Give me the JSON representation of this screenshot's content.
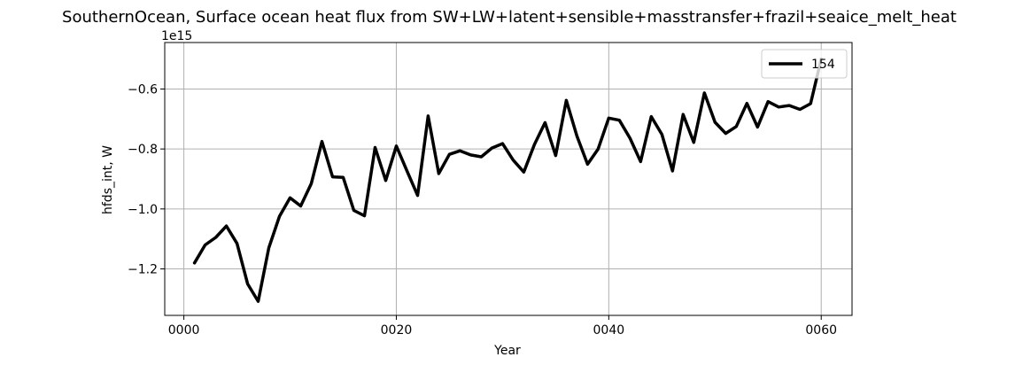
{
  "chart_data": {
    "type": "line",
    "title": "SouthernOcean, Surface ocean heat flux from SW+LW+latent+sensible+masstransfer+frazil+seaice_melt_heat",
    "xlabel": "Year",
    "ylabel": "hfds_int, W",
    "y_offset_label": "1e15",
    "xlim": [
      -1.8,
      62.9
    ],
    "ylim": [
      -1.355,
      -0.445
    ],
    "x_ticks": [
      0,
      20,
      40,
      60
    ],
    "x_tick_labels": [
      "0000",
      "0020",
      "0040",
      "0060"
    ],
    "y_ticks": [
      -1.2,
      -1.0,
      -0.8,
      -0.6
    ],
    "y_tick_labels": [
      "−1.2",
      "−1.0",
      "−0.8",
      "−0.6"
    ],
    "grid": true,
    "legend_position": "top-right",
    "series": [
      {
        "name": "154",
        "color": "#000000",
        "x": [
          1,
          2,
          3,
          4,
          5,
          6,
          7,
          8,
          9,
          10,
          11,
          12,
          13,
          14,
          15,
          16,
          17,
          18,
          19,
          20,
          21,
          22,
          23,
          24,
          25,
          26,
          27,
          28,
          29,
          30,
          31,
          32,
          33,
          34,
          35,
          36,
          37,
          38,
          39,
          40,
          41,
          42,
          43,
          44,
          45,
          46,
          47,
          48,
          49,
          50,
          51,
          52,
          53,
          54,
          55,
          56,
          57,
          58,
          59,
          60
        ],
        "values": [
          -1.18,
          -1.12,
          -1.095,
          -1.057,
          -1.115,
          -1.25,
          -1.308,
          -1.13,
          -1.025,
          -0.963,
          -0.99,
          -0.915,
          -0.775,
          -0.893,
          -0.895,
          -1.005,
          -1.023,
          -0.795,
          -0.905,
          -0.79,
          -0.873,
          -0.955,
          -0.69,
          -0.882,
          -0.818,
          -0.806,
          -0.82,
          -0.826,
          -0.797,
          -0.782,
          -0.837,
          -0.877,
          -0.785,
          -0.712,
          -0.822,
          -0.638,
          -0.757,
          -0.851,
          -0.8,
          -0.697,
          -0.704,
          -0.764,
          -0.842,
          -0.692,
          -0.751,
          -0.873,
          -0.685,
          -0.778,
          -0.613,
          -0.711,
          -0.748,
          -0.725,
          -0.648,
          -0.727,
          -0.642,
          -0.66,
          -0.655,
          -0.668,
          -0.649,
          -0.5
        ]
      }
    ]
  }
}
